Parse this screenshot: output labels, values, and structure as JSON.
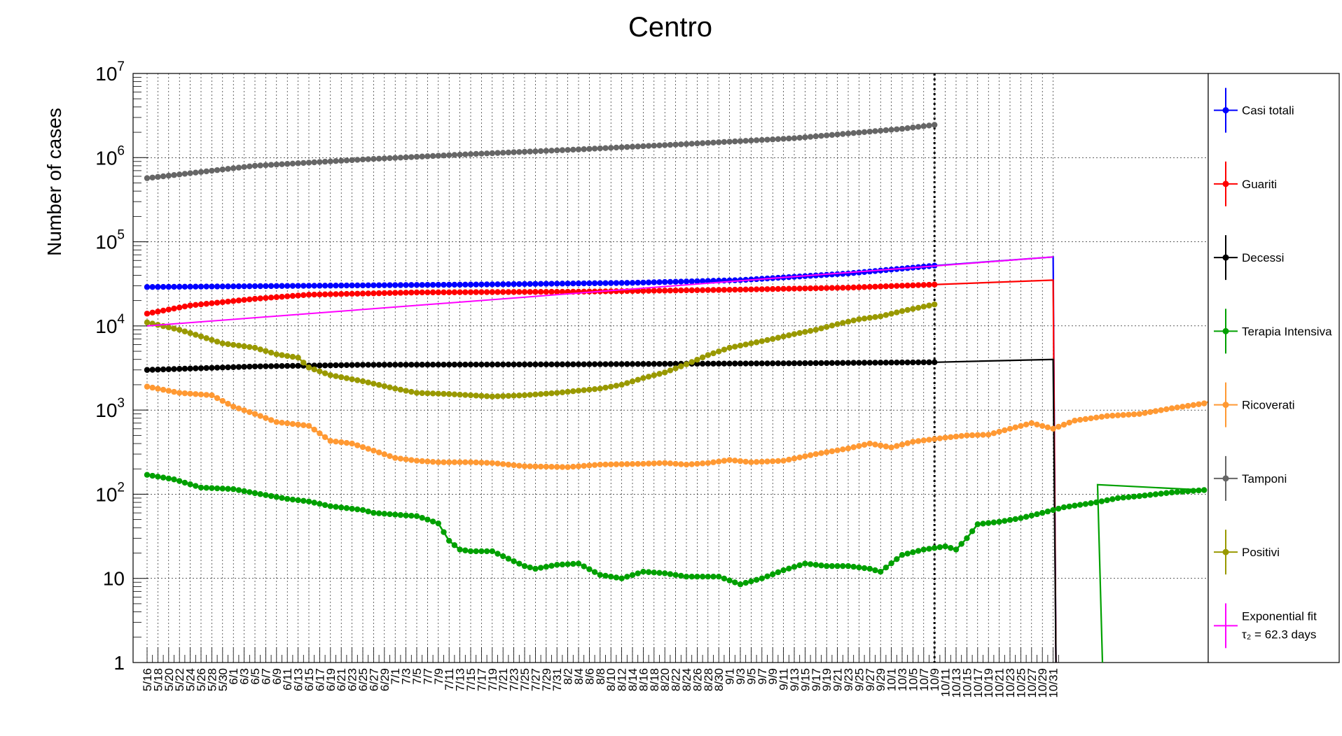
{
  "chart_data": {
    "type": "line",
    "title": "Centro",
    "ylabel": "Number of cases",
    "xlabel": "",
    "yscale": "log",
    "ylim": [
      1,
      10000000
    ],
    "y_ticks": [
      {
        "v": 1,
        "base": "1",
        "exp": ""
      },
      {
        "v": 10,
        "base": "10",
        "exp": ""
      },
      {
        "v": 100,
        "base": "10",
        "exp": "2"
      },
      {
        "v": 1000,
        "base": "10",
        "exp": "3"
      },
      {
        "v": 10000,
        "base": "10",
        "exp": "4"
      },
      {
        "v": 100000,
        "base": "10",
        "exp": "5"
      },
      {
        "v": 1000000,
        "base": "10",
        "exp": "6"
      },
      {
        "v": 10000000,
        "base": "10",
        "exp": "7"
      }
    ],
    "x_start_label": "5/16",
    "x_range_days": [
      0,
      169
    ],
    "x_tick_labels": [
      "5/16",
      "5/18",
      "5/20",
      "5/22",
      "5/24",
      "5/26",
      "5/28",
      "5/30",
      "6/1",
      "6/3",
      "6/5",
      "6/7",
      "6/9",
      "6/11",
      "6/13",
      "6/15",
      "6/17",
      "6/19",
      "6/21",
      "6/23",
      "6/25",
      "6/27",
      "6/29",
      "7/1",
      "7/3",
      "7/5",
      "7/7",
      "7/9",
      "7/11",
      "7/13",
      "7/15",
      "7/17",
      "7/19",
      "7/21",
      "7/23",
      "7/25",
      "7/27",
      "7/29",
      "7/31",
      "8/2",
      "8/4",
      "8/6",
      "8/8",
      "8/10",
      "8/12",
      "8/14",
      "8/16",
      "8/18",
      "8/20",
      "8/22",
      "8/24",
      "8/26",
      "8/28",
      "8/30",
      "9/1",
      "9/3",
      "9/5",
      "9/7",
      "9/9",
      "9/11",
      "9/13",
      "9/15",
      "9/17",
      "9/19",
      "9/21",
      "9/23",
      "9/25",
      "9/27",
      "9/29",
      "10/1",
      "10/3",
      "10/5",
      "10/7",
      "10/9",
      "10/11",
      "10/13",
      "10/15",
      "10/17",
      "10/19",
      "10/21",
      "10/23",
      "10/25",
      "10/27",
      "10/29",
      "10/31"
    ],
    "last_data_day": 146,
    "series": [
      {
        "name": "Casi totali",
        "color": "#0000ff",
        "anchors": [
          [
            0,
            29000
          ],
          [
            30,
            30000
          ],
          [
            60,
            31000
          ],
          [
            90,
            32500
          ],
          [
            110,
            35000
          ],
          [
            130,
            42000
          ],
          [
            146,
            52000
          ]
        ],
        "proj_end": [
          168,
          66000
        ]
      },
      {
        "name": "Guariti",
        "color": "#ff0000",
        "anchors": [
          [
            0,
            14000
          ],
          [
            8,
            17500
          ],
          [
            20,
            21000
          ],
          [
            30,
            23500
          ],
          [
            50,
            25000
          ],
          [
            80,
            25500
          ],
          [
            110,
            27000
          ],
          [
            130,
            28500
          ],
          [
            146,
            31000
          ]
        ],
        "proj_end": [
          168,
          35000
        ]
      },
      {
        "name": "Decessi",
        "color": "#000000",
        "anchors": [
          [
            0,
            3000
          ],
          [
            20,
            3300
          ],
          [
            40,
            3450
          ],
          [
            80,
            3500
          ],
          [
            120,
            3600
          ],
          [
            146,
            3700
          ]
        ],
        "proj_end": [
          168,
          4000
        ]
      },
      {
        "name": "Terapia Intensiva",
        "color": "#00a000",
        "anchors": [
          [
            0,
            170
          ],
          [
            5,
            150
          ],
          [
            10,
            120
          ],
          [
            16,
            115
          ],
          [
            20,
            103
          ],
          [
            26,
            88
          ],
          [
            30,
            82
          ],
          [
            34,
            72
          ],
          [
            40,
            65
          ],
          [
            42,
            60
          ],
          [
            48,
            56
          ],
          [
            50,
            55
          ],
          [
            52,
            50
          ],
          [
            54,
            45
          ],
          [
            56,
            28
          ],
          [
            58,
            22
          ],
          [
            60,
            21
          ],
          [
            64,
            21
          ],
          [
            68,
            16
          ],
          [
            70,
            14
          ],
          [
            72,
            13
          ],
          [
            76,
            14.5
          ],
          [
            80,
            15
          ],
          [
            84,
            11
          ],
          [
            88,
            10
          ],
          [
            92,
            12
          ],
          [
            96,
            11.5
          ],
          [
            100,
            10.5
          ],
          [
            106,
            10.5
          ],
          [
            110,
            8.5
          ],
          [
            114,
            10
          ],
          [
            118,
            12.5
          ],
          [
            122,
            15
          ],
          [
            126,
            14
          ],
          [
            130,
            14
          ],
          [
            134,
            13
          ],
          [
            136,
            12
          ],
          [
            140,
            19
          ],
          [
            144,
            22
          ],
          [
            148,
            24
          ],
          [
            150,
            22
          ],
          [
            152,
            30
          ],
          [
            154,
            44
          ],
          [
            158,
            47
          ],
          [
            162,
            52
          ],
          [
            166,
            60
          ],
          [
            170,
            70
          ],
          [
            176,
            80
          ],
          [
            180,
            90
          ],
          [
            184,
            95
          ],
          [
            190,
            105
          ],
          [
            196,
            112
          ]
        ],
        "trail": [
          [
            207,
            130
          ],
          [
            211,
            0.3
          ]
        ]
      },
      {
        "name": "Ricoverati",
        "color": "#ff9933",
        "anchors": [
          [
            0,
            1900
          ],
          [
            6,
            1600
          ],
          [
            12,
            1500
          ],
          [
            16,
            1100
          ],
          [
            20,
            900
          ],
          [
            24,
            720
          ],
          [
            30,
            650
          ],
          [
            34,
            430
          ],
          [
            38,
            400
          ],
          [
            42,
            330
          ],
          [
            46,
            270
          ],
          [
            50,
            250
          ],
          [
            54,
            240
          ],
          [
            60,
            240
          ],
          [
            64,
            235
          ],
          [
            70,
            215
          ],
          [
            78,
            210
          ],
          [
            84,
            225
          ],
          [
            92,
            230
          ],
          [
            96,
            235
          ],
          [
            100,
            225
          ],
          [
            104,
            235
          ],
          [
            108,
            255
          ],
          [
            112,
            240
          ],
          [
            118,
            250
          ],
          [
            124,
            300
          ],
          [
            130,
            350
          ],
          [
            134,
            400
          ],
          [
            138,
            360
          ],
          [
            142,
            420
          ],
          [
            148,
            470
          ],
          [
            152,
            500
          ],
          [
            156,
            510
          ],
          [
            160,
            600
          ],
          [
            164,
            700
          ],
          [
            168,
            600
          ],
          [
            172,
            750
          ],
          [
            178,
            850
          ],
          [
            184,
            900
          ],
          [
            190,
            1050
          ],
          [
            196,
            1200
          ]
        ],
        "proj_end": [
          207,
          2300
        ]
      },
      {
        "name": "Tamponi",
        "color": "#666666",
        "anchors": [
          [
            0,
            570000
          ],
          [
            20,
            800000
          ],
          [
            40,
            950000
          ],
          [
            60,
            1100000
          ],
          [
            80,
            1250000
          ],
          [
            100,
            1450000
          ],
          [
            120,
            1700000
          ],
          [
            140,
            2200000
          ],
          [
            146,
            2450000
          ]
        ]
      },
      {
        "name": "Positivi",
        "color": "#999900",
        "anchors": [
          [
            0,
            11000
          ],
          [
            6,
            9000
          ],
          [
            10,
            7500
          ],
          [
            14,
            6200
          ],
          [
            20,
            5500
          ],
          [
            24,
            4600
          ],
          [
            28,
            4200
          ],
          [
            30,
            3200
          ],
          [
            34,
            2600
          ],
          [
            40,
            2200
          ],
          [
            46,
            1800
          ],
          [
            50,
            1600
          ],
          [
            56,
            1550
          ],
          [
            60,
            1500
          ],
          [
            64,
            1450
          ],
          [
            70,
            1500
          ],
          [
            76,
            1600
          ],
          [
            80,
            1700
          ],
          [
            84,
            1800
          ],
          [
            88,
            2000
          ],
          [
            92,
            2400
          ],
          [
            96,
            2800
          ],
          [
            100,
            3500
          ],
          [
            104,
            4500
          ],
          [
            108,
            5500
          ],
          [
            112,
            6200
          ],
          [
            116,
            7000
          ],
          [
            120,
            8000
          ],
          [
            124,
            9000
          ],
          [
            128,
            10500
          ],
          [
            132,
            12000
          ],
          [
            136,
            13000
          ],
          [
            140,
            15000
          ],
          [
            146,
            18000
          ]
        ]
      },
      {
        "name": "Exponential fit",
        "name2": "τ₂ = 62.3 days",
        "color": "#ff00ff",
        "line": [
          [
            0,
            10000
          ],
          [
            168,
            66000
          ]
        ]
      }
    ],
    "legend": [
      {
        "label": "Casi totali",
        "color": "#0000ff"
      },
      {
        "label": "Guariti",
        "color": "#ff0000"
      },
      {
        "label": "Decessi",
        "color": "#000000"
      },
      {
        "label": "Terapia Intensiva",
        "color": "#00a000"
      },
      {
        "label": "Ricoverati",
        "color": "#ff9933"
      },
      {
        "label": "Tamponi",
        "color": "#666666"
      },
      {
        "label": "Positivi",
        "color": "#999900"
      },
      {
        "label": "Exponential fit",
        "label2": "τ₂ = 62.3 days",
        "color": "#ff00ff"
      }
    ],
    "legend_position": "right",
    "grid": true,
    "vertical_marker_day": 146
  }
}
